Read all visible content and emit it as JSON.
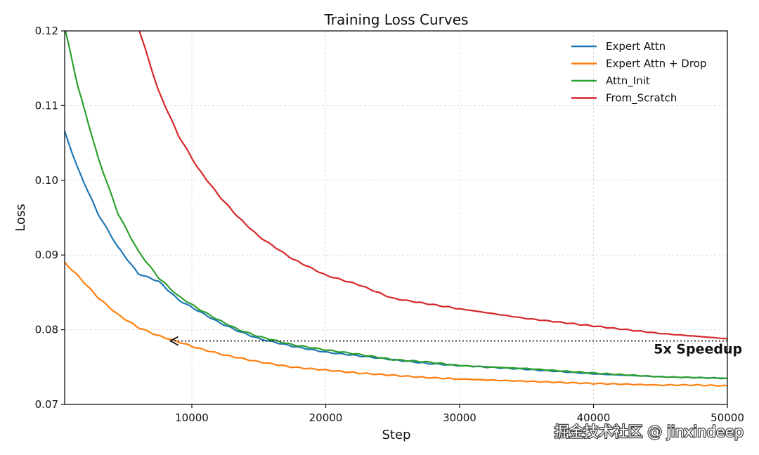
{
  "chart_data": {
    "type": "line",
    "title": "Training Loss Curves",
    "xlabel": "Step",
    "ylabel": "Loss",
    "xlim": [
      500,
      50000
    ],
    "ylim": [
      0.07,
      0.12
    ],
    "xticks": [
      10000,
      20000,
      30000,
      40000,
      50000
    ],
    "yticks": [
      0.07,
      0.08,
      0.09,
      0.1,
      0.11,
      0.12
    ],
    "ytick_labels": [
      "0.07",
      "0.08",
      "0.09",
      "0.10",
      "0.11",
      "0.12"
    ],
    "grid": true,
    "legend_position": "top-right",
    "series": [
      {
        "name": "Expert Attn",
        "color": "#1f77b4",
        "x": [
          500,
          1500,
          3000,
          4500,
          6000,
          7500,
          9000,
          10500,
          12000,
          13500,
          15000,
          17500,
          20000,
          22500,
          25000,
          27500,
          30000,
          35000,
          40000,
          45000,
          50000
        ],
        "y": [
          0.1065,
          0.1015,
          0.0955,
          0.091,
          0.0875,
          0.0865,
          0.084,
          0.0825,
          0.081,
          0.0798,
          0.0788,
          0.0778,
          0.077,
          0.0765,
          0.076,
          0.0755,
          0.0752,
          0.0747,
          0.0741,
          0.0737,
          0.0735
        ]
      },
      {
        "name": "Expert Attn + Drop",
        "color": "#ff7f0e",
        "x": [
          500,
          1500,
          3000,
          4500,
          6000,
          7500,
          8800,
          10500,
          12500,
          15000,
          17500,
          20000,
          22500,
          25000,
          27500,
          30000,
          35000,
          40000,
          45000,
          47500,
          50000
        ],
        "y": [
          0.089,
          0.0872,
          0.0843,
          0.082,
          0.0803,
          0.0792,
          0.0785,
          0.0775,
          0.0766,
          0.0757,
          0.075,
          0.0746,
          0.0742,
          0.0739,
          0.0736,
          0.0734,
          0.0731,
          0.0728,
          0.0726,
          0.0726,
          0.0725
        ]
      },
      {
        "name": "Attn_Init",
        "color": "#2ca02c",
        "x": [
          500,
          1500,
          3000,
          4500,
          6000,
          7500,
          9000,
          10500,
          12000,
          13500,
          15000,
          17500,
          20000,
          22500,
          25000,
          27500,
          30000,
          35000,
          40000,
          45000,
          50000
        ],
        "y": [
          0.1205,
          0.1125,
          0.103,
          0.0955,
          0.0905,
          0.087,
          0.0845,
          0.0828,
          0.0813,
          0.08,
          0.0791,
          0.078,
          0.0773,
          0.0767,
          0.076,
          0.0757,
          0.0752,
          0.0748,
          0.0742,
          0.0737,
          0.0735
        ]
      },
      {
        "name": "From_Scratch",
        "color": "#d62728",
        "x": [
          6000,
          7500,
          9000,
          10500,
          12000,
          13500,
          15000,
          17500,
          20000,
          22500,
          25000,
          27500,
          30000,
          35000,
          40000,
          45000,
          50000
        ],
        "y": [
          0.1205,
          0.112,
          0.106,
          0.1015,
          0.098,
          0.095,
          0.0925,
          0.0895,
          0.0873,
          0.086,
          0.0842,
          0.0835,
          0.0828,
          0.0815,
          0.0805,
          0.0795,
          0.0788
        ]
      }
    ],
    "annotations": [
      {
        "text": "5x Speedup",
        "text_x": 44500,
        "text_y": 0.0768,
        "arrow_from": [
          50000,
          0.0785
        ],
        "arrow_to": [
          8400,
          0.0785
        ]
      }
    ]
  },
  "watermark": "掘金技术社区 @ jinxindeep"
}
